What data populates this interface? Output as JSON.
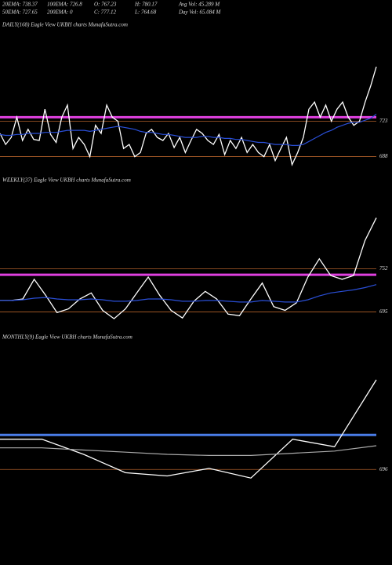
{
  "header": {
    "rows": [
      [
        "20EMA: 738.37",
        "100EMA: 726.8",
        "O: 767.23",
        "H: 780.17",
        "Avg Vol: 45.289 M"
      ],
      [
        "50EMA: 727.65",
        "200EMA: 0",
        "C: 777.12",
        "L: 764.68",
        "Day Vol: 65.084  M"
      ]
    ]
  },
  "chart_data": [
    {
      "type": "line",
      "title": "DAILY(168) Eagle  View  UKBH charts MunafaSutra.com",
      "ylim": [
        676,
        812
      ],
      "yticks": [
        688,
        723
      ],
      "grid": true,
      "hline": {
        "value": 727,
        "color": "#e040e0"
      },
      "series": [
        {
          "color": "#ffffff",
          "values": [
            711,
            700,
            707,
            727,
            704,
            715,
            705,
            704,
            735,
            710,
            702,
            727,
            739,
            696,
            707,
            700,
            688,
            719,
            711,
            739,
            727,
            723,
            696,
            700,
            688,
            692,
            711,
            715,
            707,
            704,
            711,
            697,
            707,
            692,
            704,
            715,
            711,
            704,
            700,
            710,
            690,
            704,
            696,
            707,
            692,
            700,
            692,
            688,
            700,
            684,
            696,
            707,
            680,
            692,
            707,
            735,
            742,
            727,
            739,
            723,
            735,
            742,
            727,
            719,
            723,
            742,
            758,
            777
          ]
        },
        {
          "color": "#2a4fd8",
          "values": [
            710,
            709,
            709,
            710,
            710,
            711,
            711,
            711,
            712,
            712,
            712,
            713,
            714,
            714,
            714,
            714,
            713,
            714,
            715,
            716,
            717,
            718,
            717,
            716,
            715,
            713,
            712,
            712,
            711,
            710,
            710,
            709,
            708,
            707,
            707,
            707,
            708,
            708,
            707,
            707,
            706,
            706,
            705,
            705,
            704,
            703,
            702,
            702,
            701,
            700,
            700,
            700,
            699,
            699,
            700,
            703,
            706,
            709,
            712,
            714,
            717,
            719,
            721,
            722,
            722,
            724,
            726,
            730
          ]
        }
      ]
    },
    {
      "type": "line",
      "title": "WEEKLY(37) Eagle  View  UKBH charts MunafaSutra.com",
      "ylim": [
        682,
        860
      ],
      "yticks": [
        695,
        752
      ],
      "grid": true,
      "hline": {
        "value": 744,
        "color": "#e040e0"
      },
      "series": [
        {
          "color": "#ffffff",
          "values": [
            710,
            710,
            712,
            738,
            717,
            694,
            699,
            712,
            720,
            697,
            686,
            699,
            720,
            741,
            717,
            697,
            687,
            709,
            722,
            712,
            692,
            690,
            712,
            733,
            702,
            697,
            707,
            741,
            765,
            743,
            738,
            743,
            789,
            819
          ]
        },
        {
          "color": "#2a4fd8",
          "values": [
            710,
            710,
            711,
            713,
            714,
            712,
            711,
            711,
            712,
            711,
            709,
            709,
            710,
            712,
            712,
            711,
            709,
            709,
            710,
            710,
            709,
            708,
            708,
            710,
            709,
            708,
            708,
            711,
            716,
            720,
            722,
            724,
            727,
            731
          ]
        }
      ]
    },
    {
      "type": "line",
      "title": "MONTHLY(9) Eagle  View  UKBH charts MunafaSutra.com",
      "ylim": [
        686,
        811
      ],
      "yticks": [
        696
      ],
      "grid": true,
      "hline": {
        "value": 728,
        "color": "#4a7de8"
      },
      "series": [
        {
          "color": "#ffffff",
          "values": [
            724,
            724,
            710,
            693,
            690,
            697,
            688,
            724,
            717,
            779
          ]
        },
        {
          "color": "#aaaaaa",
          "values": [
            716,
            716,
            714,
            712,
            710,
            709,
            709,
            711,
            713,
            718
          ]
        }
      ]
    }
  ]
}
